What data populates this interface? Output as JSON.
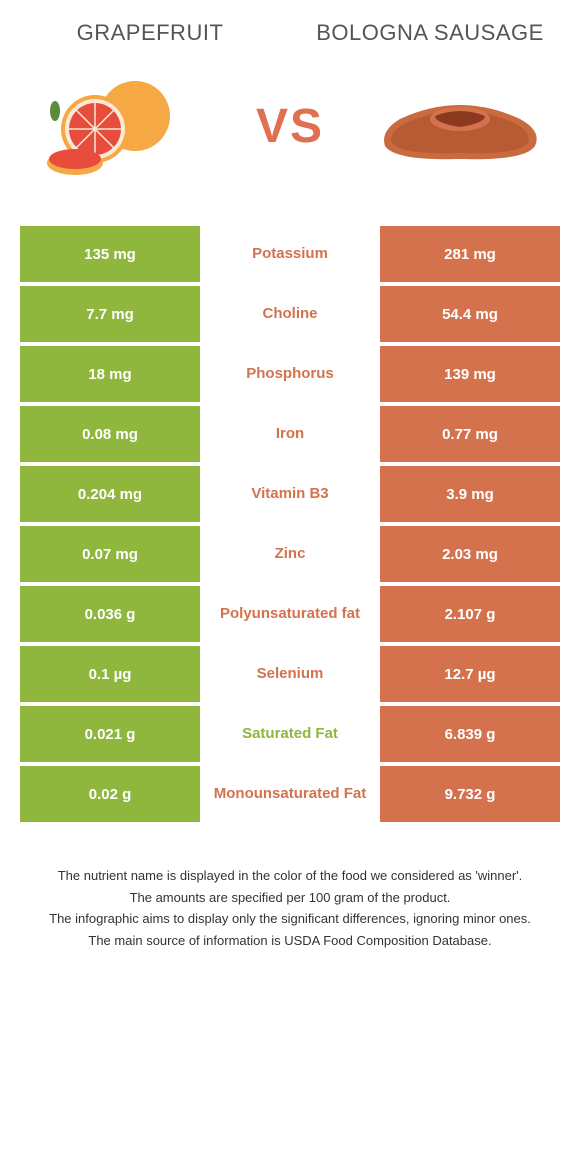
{
  "colors": {
    "left": "#8fb63d",
    "right": "#d4724d",
    "left_color": "#8fb63d",
    "right_color": "#d4724d",
    "vs_color": "#e07050"
  },
  "header": {
    "left_title": "Grapefruit",
    "right_title": "Bologna sausage",
    "vs_label": "VS"
  },
  "rows": [
    {
      "left": "135 mg",
      "label": "Potassium",
      "right": "281 mg",
      "winner": "right"
    },
    {
      "left": "7.7 mg",
      "label": "Choline",
      "right": "54.4 mg",
      "winner": "right"
    },
    {
      "left": "18 mg",
      "label": "Phosphorus",
      "right": "139 mg",
      "winner": "right"
    },
    {
      "left": "0.08 mg",
      "label": "Iron",
      "right": "0.77 mg",
      "winner": "right"
    },
    {
      "left": "0.204 mg",
      "label": "Vitamin B3",
      "right": "3.9 mg",
      "winner": "right"
    },
    {
      "left": "0.07 mg",
      "label": "Zinc",
      "right": "2.03 mg",
      "winner": "right"
    },
    {
      "left": "0.036 g",
      "label": "Polyunsaturated fat",
      "right": "2.107 g",
      "winner": "right"
    },
    {
      "left": "0.1 µg",
      "label": "Selenium",
      "right": "12.7 µg",
      "winner": "right"
    },
    {
      "left": "0.021 g",
      "label": "Saturated Fat",
      "right": "6.839 g",
      "winner": "left"
    },
    {
      "left": "0.02 g",
      "label": "Monounsaturated Fat",
      "right": "9.732 g",
      "winner": "right"
    }
  ],
  "footer": {
    "line1": "The nutrient name is displayed in the color of the food we considered as 'winner'.",
    "line2": "The amounts are specified per 100 gram of the product.",
    "line3": "The infographic aims to display only the significant differences, ignoring minor ones.",
    "line4": "The main source of information is USDA Food Composition Database."
  }
}
